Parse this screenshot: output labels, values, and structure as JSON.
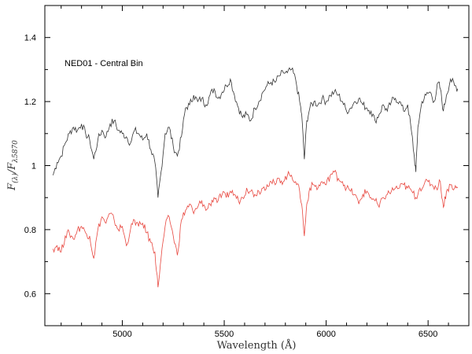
{
  "chart_data": {
    "type": "line",
    "title": "",
    "annotation": "NED01 - Central Bin",
    "xlabel": "Wavelength (Å)",
    "ylabel_main": "F",
    "ylabel_sub": "(λ)",
    "ylabel_den": "/F",
    "ylabel_den_sub": "λ5870",
    "xlim": [
      4620,
      6700
    ],
    "ylim": [
      0.5,
      1.5
    ],
    "xticks": [
      5000,
      5500,
      6000,
      6500
    ],
    "yticks": [
      0.6,
      0.8,
      1,
      1.2,
      1.4
    ],
    "ytick_labels": [
      "0.6",
      "0.8",
      "1",
      "1.2",
      "1.4"
    ],
    "grid": false,
    "series": [
      {
        "color": "#333333",
        "points": [
          [
            4660,
            0.97
          ],
          [
            4680,
            1.01
          ],
          [
            4700,
            1.03
          ],
          [
            4720,
            1.07
          ],
          [
            4740,
            1.1
          ],
          [
            4760,
            1.12
          ],
          [
            4780,
            1.11
          ],
          [
            4800,
            1.13
          ],
          [
            4820,
            1.1
          ],
          [
            4840,
            1.08
          ],
          [
            4860,
            1.02
          ],
          [
            4880,
            1.08
          ],
          [
            4900,
            1.11
          ],
          [
            4920,
            1.09
          ],
          [
            4940,
            1.13
          ],
          [
            4960,
            1.14
          ],
          [
            4980,
            1.11
          ],
          [
            5000,
            1.1
          ],
          [
            5020,
            1.09
          ],
          [
            5040,
            1.07
          ],
          [
            5060,
            1.11
          ],
          [
            5080,
            1.1
          ],
          [
            5100,
            1.08
          ],
          [
            5120,
            1.1
          ],
          [
            5140,
            1.05
          ],
          [
            5160,
            1.01
          ],
          [
            5175,
            0.9
          ],
          [
            5190,
            0.98
          ],
          [
            5210,
            1.1
          ],
          [
            5230,
            1.12
          ],
          [
            5250,
            1.06
          ],
          [
            5270,
            1.03
          ],
          [
            5290,
            1.09
          ],
          [
            5310,
            1.18
          ],
          [
            5330,
            1.19
          ],
          [
            5350,
            1.22
          ],
          [
            5370,
            1.2
          ],
          [
            5390,
            1.21
          ],
          [
            5410,
            1.19
          ],
          [
            5430,
            1.22
          ],
          [
            5450,
            1.24
          ],
          [
            5470,
            1.21
          ],
          [
            5490,
            1.23
          ],
          [
            5510,
            1.25
          ],
          [
            5530,
            1.27
          ],
          [
            5550,
            1.22
          ],
          [
            5570,
            1.18
          ],
          [
            5590,
            1.15
          ],
          [
            5610,
            1.16
          ],
          [
            5630,
            1.14
          ],
          [
            5650,
            1.18
          ],
          [
            5670,
            1.2
          ],
          [
            5690,
            1.23
          ],
          [
            5710,
            1.25
          ],
          [
            5730,
            1.26
          ],
          [
            5750,
            1.26
          ],
          [
            5770,
            1.28
          ],
          [
            5790,
            1.29
          ],
          [
            5810,
            1.29
          ],
          [
            5830,
            1.3
          ],
          [
            5850,
            1.27
          ],
          [
            5870,
            1.2
          ],
          [
            5880,
            1.16
          ],
          [
            5893,
            1.02
          ],
          [
            5905,
            1.14
          ],
          [
            5920,
            1.18
          ],
          [
            5940,
            1.2
          ],
          [
            5960,
            1.19
          ],
          [
            5980,
            1.21
          ],
          [
            6000,
            1.2
          ],
          [
            6020,
            1.22
          ],
          [
            6040,
            1.23
          ],
          [
            6060,
            1.22
          ],
          [
            6080,
            1.2
          ],
          [
            6100,
            1.17
          ],
          [
            6120,
            1.18
          ],
          [
            6140,
            1.2
          ],
          [
            6160,
            1.21
          ],
          [
            6180,
            1.19
          ],
          [
            6200,
            1.18
          ],
          [
            6220,
            1.17
          ],
          [
            6240,
            1.14
          ],
          [
            6260,
            1.16
          ],
          [
            6280,
            1.19
          ],
          [
            6300,
            1.17
          ],
          [
            6320,
            1.2
          ],
          [
            6340,
            1.21
          ],
          [
            6360,
            1.2
          ],
          [
            6380,
            1.17
          ],
          [
            6400,
            1.19
          ],
          [
            6420,
            1.1
          ],
          [
            6430,
            1.04
          ],
          [
            6440,
            0.98
          ],
          [
            6450,
            1.12
          ],
          [
            6470,
            1.2
          ],
          [
            6490,
            1.22
          ],
          [
            6510,
            1.23
          ],
          [
            6530,
            1.2
          ],
          [
            6550,
            1.26
          ],
          [
            6560,
            1.24
          ],
          [
            6575,
            1.17
          ],
          [
            6590,
            1.22
          ],
          [
            6610,
            1.27
          ],
          [
            6630,
            1.25
          ],
          [
            6645,
            1.24
          ]
        ]
      },
      {
        "color": "#e8473f",
        "points": [
          [
            4660,
            0.74
          ],
          [
            4680,
            0.75
          ],
          [
            4700,
            0.73
          ],
          [
            4720,
            0.78
          ],
          [
            4740,
            0.79
          ],
          [
            4760,
            0.77
          ],
          [
            4780,
            0.8
          ],
          [
            4800,
            0.81
          ],
          [
            4820,
            0.79
          ],
          [
            4840,
            0.78
          ],
          [
            4860,
            0.71
          ],
          [
            4880,
            0.8
          ],
          [
            4900,
            0.84
          ],
          [
            4920,
            0.82
          ],
          [
            4940,
            0.85
          ],
          [
            4960,
            0.83
          ],
          [
            4980,
            0.8
          ],
          [
            5000,
            0.81
          ],
          [
            5020,
            0.75
          ],
          [
            5040,
            0.8
          ],
          [
            5060,
            0.83
          ],
          [
            5080,
            0.81
          ],
          [
            5100,
            0.82
          ],
          [
            5120,
            0.79
          ],
          [
            5140,
            0.76
          ],
          [
            5160,
            0.73
          ],
          [
            5175,
            0.62
          ],
          [
            5190,
            0.71
          ],
          [
            5210,
            0.81
          ],
          [
            5230,
            0.84
          ],
          [
            5250,
            0.78
          ],
          [
            5270,
            0.72
          ],
          [
            5290,
            0.83
          ],
          [
            5310,
            0.86
          ],
          [
            5330,
            0.88
          ],
          [
            5350,
            0.85
          ],
          [
            5370,
            0.87
          ],
          [
            5390,
            0.89
          ],
          [
            5410,
            0.86
          ],
          [
            5430,
            0.88
          ],
          [
            5450,
            0.9
          ],
          [
            5470,
            0.89
          ],
          [
            5490,
            0.91
          ],
          [
            5510,
            0.9
          ],
          [
            5530,
            0.92
          ],
          [
            5550,
            0.91
          ],
          [
            5570,
            0.89
          ],
          [
            5590,
            0.9
          ],
          [
            5610,
            0.93
          ],
          [
            5630,
            0.92
          ],
          [
            5650,
            0.91
          ],
          [
            5670,
            0.92
          ],
          [
            5690,
            0.93
          ],
          [
            5710,
            0.94
          ],
          [
            5730,
            0.95
          ],
          [
            5750,
            0.94
          ],
          [
            5770,
            0.96
          ],
          [
            5790,
            0.95
          ],
          [
            5810,
            0.97
          ],
          [
            5830,
            0.97
          ],
          [
            5850,
            0.95
          ],
          [
            5870,
            0.92
          ],
          [
            5880,
            0.88
          ],
          [
            5893,
            0.78
          ],
          [
            5905,
            0.88
          ],
          [
            5920,
            0.93
          ],
          [
            5940,
            0.94
          ],
          [
            5960,
            0.93
          ],
          [
            5980,
            0.95
          ],
          [
            6000,
            0.94
          ],
          [
            6020,
            0.97
          ],
          [
            6040,
            0.98
          ],
          [
            6060,
            0.96
          ],
          [
            6080,
            0.95
          ],
          [
            6100,
            0.93
          ],
          [
            6120,
            0.92
          ],
          [
            6140,
            0.91
          ],
          [
            6160,
            0.88
          ],
          [
            6180,
            0.91
          ],
          [
            6200,
            0.92
          ],
          [
            6220,
            0.9
          ],
          [
            6240,
            0.89
          ],
          [
            6260,
            0.87
          ],
          [
            6280,
            0.9
          ],
          [
            6300,
            0.91
          ],
          [
            6320,
            0.92
          ],
          [
            6340,
            0.93
          ],
          [
            6360,
            0.93
          ],
          [
            6380,
            0.94
          ],
          [
            6400,
            0.93
          ],
          [
            6420,
            0.92
          ],
          [
            6440,
            0.9
          ],
          [
            6460,
            0.93
          ],
          [
            6480,
            0.94
          ],
          [
            6500,
            0.95
          ],
          [
            6520,
            0.94
          ],
          [
            6540,
            0.93
          ],
          [
            6560,
            0.95
          ],
          [
            6575,
            0.87
          ],
          [
            6590,
            0.92
          ],
          [
            6610,
            0.94
          ],
          [
            6630,
            0.93
          ],
          [
            6645,
            0.93
          ]
        ]
      }
    ]
  }
}
